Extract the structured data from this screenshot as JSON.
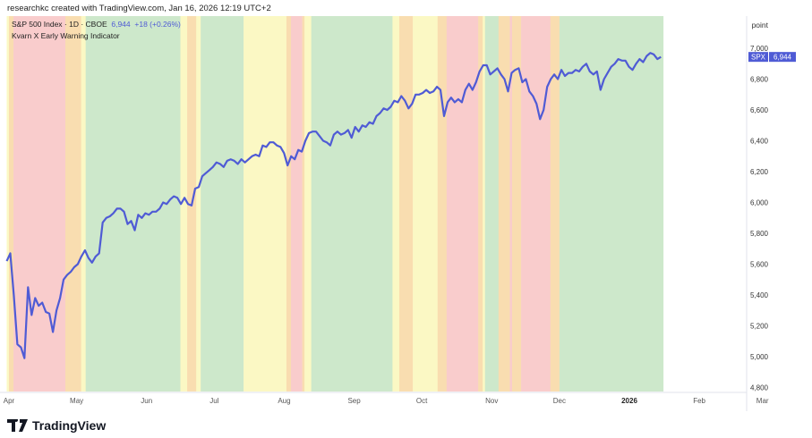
{
  "header": {
    "credit": "researchkc created with TradingView.com, Jan 16, 2026 12:19 UTC+2"
  },
  "legend": {
    "symbol": "S&P 500 Index · 1D · CBOE",
    "price": "6,944",
    "change": "+18 (+0.26%)",
    "indicator": "Kvarn X Early Warning Indicator"
  },
  "price_axis": {
    "unit": "point",
    "ticker": "SPX",
    "last": "6,944"
  },
  "footer": {
    "brand": "TradingView"
  },
  "colors": {
    "line": "#4f5bd5",
    "G": "#cde8cb",
    "Y": "#fbf8c4",
    "O": "#f9ddb0",
    "R": "#f9cccc"
  },
  "chart_data": {
    "type": "line",
    "title": "S&P 500 Index · 1D · CBOE",
    "xlabel": "",
    "ylabel": "point",
    "ylim": [
      4800,
      7050
    ],
    "yticks": [
      4800,
      5000,
      5200,
      5400,
      5600,
      5800,
      6000,
      6200,
      6400,
      6600,
      6800,
      7000
    ],
    "ytick_labels": [
      "4,800",
      "5,000",
      "5,200",
      "5,400",
      "5,600",
      "5,800",
      "6,000",
      "6,200",
      "6,400",
      "6,600",
      "6,800",
      "7,000"
    ],
    "x_unit": "days since Apr 1 2025",
    "xlim": [
      -1,
      340
    ],
    "xticks": [
      {
        "label": "Apr",
        "d": 0
      },
      {
        "label": "May",
        "d": 30
      },
      {
        "label": "Jun",
        "d": 61
      },
      {
        "label": "Jul",
        "d": 91
      },
      {
        "label": "Aug",
        "d": 122
      },
      {
        "label": "Sep",
        "d": 153
      },
      {
        "label": "Oct",
        "d": 183
      },
      {
        "label": "Nov",
        "d": 214
      },
      {
        "label": "Dec",
        "d": 244
      },
      {
        "label": "2026",
        "d": 275,
        "bold": true
      },
      {
        "label": "Feb",
        "d": 306
      },
      {
        "label": "Mar",
        "d": 334
      }
    ],
    "series_x_range": [
      -1,
      289
    ],
    "series": [
      {
        "name": "SPX",
        "values": [
          5620,
          5670,
          5400,
          5080,
          5060,
          4990,
          5450,
          5270,
          5380,
          5330,
          5350,
          5290,
          5280,
          5160,
          5300,
          5380,
          5500,
          5530,
          5550,
          5580,
          5600,
          5650,
          5690,
          5640,
          5610,
          5650,
          5670,
          5870,
          5900,
          5910,
          5930,
          5960,
          5960,
          5940,
          5860,
          5880,
          5820,
          5920,
          5900,
          5930,
          5920,
          5940,
          5940,
          5960,
          6000,
          5990,
          6020,
          6040,
          6030,
          5990,
          6030,
          5990,
          5980,
          6090,
          6100,
          6170,
          6190,
          6210,
          6230,
          6260,
          6250,
          6230,
          6270,
          6280,
          6270,
          6250,
          6280,
          6260,
          6280,
          6300,
          6310,
          6300,
          6370,
          6360,
          6390,
          6390,
          6370,
          6360,
          6320,
          6240,
          6300,
          6280,
          6340,
          6330,
          6400,
          6450,
          6460,
          6460,
          6430,
          6400,
          6390,
          6370,
          6440,
          6460,
          6440,
          6450,
          6470,
          6420,
          6490,
          6460,
          6500,
          6490,
          6520,
          6510,
          6560,
          6580,
          6610,
          6600,
          6620,
          6660,
          6650,
          6690,
          6660,
          6610,
          6640,
          6700,
          6700,
          6710,
          6730,
          6710,
          6720,
          6750,
          6730,
          6560,
          6650,
          6680,
          6650,
          6670,
          6650,
          6730,
          6770,
          6730,
          6780,
          6850,
          6890,
          6890,
          6830,
          6850,
          6870,
          6830,
          6800,
          6720,
          6840,
          6860,
          6870,
          6780,
          6800,
          6720,
          6690,
          6640,
          6540,
          6600,
          6750,
          6800,
          6830,
          6800,
          6860,
          6820,
          6840,
          6840,
          6860,
          6850,
          6880,
          6900,
          6850,
          6830,
          6850,
          6730,
          6800,
          6840,
          6880,
          6900,
          6930,
          6920,
          6920,
          6880,
          6860,
          6900,
          6930,
          6910,
          6950,
          6970,
          6960,
          6930,
          6944
        ]
      }
    ],
    "bands": [
      [
        -1,
        0,
        "Y"
      ],
      [
        0,
        2,
        "O"
      ],
      [
        2,
        25,
        "R"
      ],
      [
        25,
        32,
        "O"
      ],
      [
        32,
        34,
        "Y"
      ],
      [
        34,
        76,
        "G"
      ],
      [
        76,
        79,
        "Y"
      ],
      [
        79,
        83,
        "O"
      ],
      [
        83,
        85,
        "Y"
      ],
      [
        85,
        104,
        "G"
      ],
      [
        104,
        123,
        "Y"
      ],
      [
        123,
        125,
        "O"
      ],
      [
        125,
        130,
        "R"
      ],
      [
        130,
        131,
        "O"
      ],
      [
        131,
        134,
        "Y"
      ],
      [
        134,
        170,
        "G"
      ],
      [
        170,
        173,
        "Y"
      ],
      [
        173,
        179,
        "O"
      ],
      [
        179,
        190,
        "Y"
      ],
      [
        190,
        194,
        "O"
      ],
      [
        194,
        208,
        "R"
      ],
      [
        208,
        210,
        "O"
      ],
      [
        210,
        211,
        "Y"
      ],
      [
        211,
        217,
        "G"
      ],
      [
        217,
        222,
        "O"
      ],
      [
        222,
        223,
        "R"
      ],
      [
        223,
        227,
        "O"
      ],
      [
        227,
        240,
        "R"
      ],
      [
        240,
        244,
        "O"
      ],
      [
        244,
        290,
        "G"
      ]
    ]
  }
}
